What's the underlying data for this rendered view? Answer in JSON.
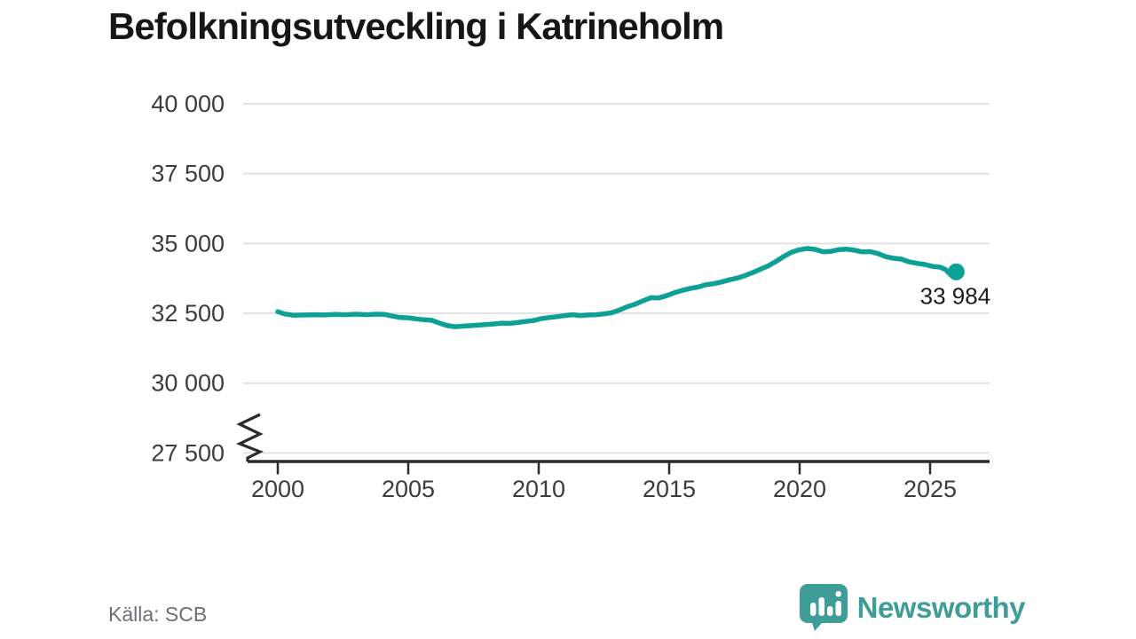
{
  "title": "Befolkningsutveckling i Katrineholm",
  "source": "Källa: SCB",
  "brand": {
    "name": "Newsworthy"
  },
  "colors": {
    "line": "#0da094",
    "logo": "#3e9e97",
    "grid": "#e2e2e2",
    "axis": "#2b2b2b",
    "text": "#3c3c3c",
    "title": "#161616",
    "muted": "#6c6f76",
    "background": "#ffffff"
  },
  "chart_data": {
    "type": "line",
    "title": "Befolkningsutveckling i Katrineholm",
    "xlabel": "",
    "ylabel": "",
    "grid": true,
    "legend": false,
    "axis_break": true,
    "ylim": [
      27500,
      40000
    ],
    "xlim": [
      1998.8,
      2027.3
    ],
    "y_ticks": [
      40000,
      37500,
      35000,
      32500,
      30000,
      27500
    ],
    "y_tick_labels": [
      "40 000",
      "37 500",
      "35 000",
      "32 500",
      "30 000",
      "27 500"
    ],
    "x_ticks": [
      2000,
      2005,
      2010,
      2015,
      2020,
      2025
    ],
    "x_tick_labels": [
      "2000",
      "2005",
      "2010",
      "2015",
      "2020",
      "2025"
    ],
    "end_point_label": "33 984",
    "series": [
      {
        "name": "Befolkning",
        "points": [
          [
            2000.0,
            32560
          ],
          [
            2000.25,
            32480
          ],
          [
            2000.6,
            32430
          ],
          [
            2001.0,
            32440
          ],
          [
            2001.4,
            32450
          ],
          [
            2001.8,
            32440
          ],
          [
            2002.2,
            32460
          ],
          [
            2002.6,
            32450
          ],
          [
            2003.0,
            32470
          ],
          [
            2003.4,
            32450
          ],
          [
            2003.8,
            32470
          ],
          [
            2004.1,
            32460
          ],
          [
            2004.4,
            32400
          ],
          [
            2004.7,
            32350
          ],
          [
            2005.0,
            32340
          ],
          [
            2005.3,
            32300
          ],
          [
            2005.6,
            32270
          ],
          [
            2005.9,
            32250
          ],
          [
            2006.2,
            32150
          ],
          [
            2006.5,
            32060
          ],
          [
            2006.8,
            32020
          ],
          [
            2007.1,
            32040
          ],
          [
            2007.4,
            32060
          ],
          [
            2007.7,
            32080
          ],
          [
            2008.0,
            32100
          ],
          [
            2008.3,
            32120
          ],
          [
            2008.6,
            32150
          ],
          [
            2008.9,
            32140
          ],
          [
            2009.2,
            32170
          ],
          [
            2009.5,
            32210
          ],
          [
            2009.8,
            32240
          ],
          [
            2010.1,
            32310
          ],
          [
            2010.4,
            32350
          ],
          [
            2010.7,
            32380
          ],
          [
            2011.0,
            32420
          ],
          [
            2011.3,
            32450
          ],
          [
            2011.6,
            32420
          ],
          [
            2011.9,
            32440
          ],
          [
            2012.2,
            32450
          ],
          [
            2012.5,
            32480
          ],
          [
            2012.8,
            32520
          ],
          [
            2013.1,
            32620
          ],
          [
            2013.4,
            32740
          ],
          [
            2013.7,
            32830
          ],
          [
            2014.0,
            32950
          ],
          [
            2014.3,
            33060
          ],
          [
            2014.6,
            33050
          ],
          [
            2014.9,
            33130
          ],
          [
            2015.2,
            33240
          ],
          [
            2015.5,
            33320
          ],
          [
            2015.8,
            33390
          ],
          [
            2016.1,
            33440
          ],
          [
            2016.4,
            33520
          ],
          [
            2016.7,
            33560
          ],
          [
            2017.0,
            33620
          ],
          [
            2017.3,
            33700
          ],
          [
            2017.6,
            33760
          ],
          [
            2017.9,
            33850
          ],
          [
            2018.2,
            33960
          ],
          [
            2018.5,
            34080
          ],
          [
            2018.8,
            34200
          ],
          [
            2019.1,
            34360
          ],
          [
            2019.4,
            34540
          ],
          [
            2019.7,
            34690
          ],
          [
            2020.0,
            34780
          ],
          [
            2020.3,
            34820
          ],
          [
            2020.6,
            34790
          ],
          [
            2020.9,
            34700
          ],
          [
            2021.2,
            34720
          ],
          [
            2021.5,
            34780
          ],
          [
            2021.8,
            34800
          ],
          [
            2022.1,
            34760
          ],
          [
            2022.4,
            34700
          ],
          [
            2022.7,
            34710
          ],
          [
            2023.0,
            34640
          ],
          [
            2023.3,
            34530
          ],
          [
            2023.6,
            34470
          ],
          [
            2023.9,
            34440
          ],
          [
            2024.2,
            34340
          ],
          [
            2024.5,
            34290
          ],
          [
            2024.8,
            34250
          ],
          [
            2025.1,
            34180
          ],
          [
            2025.4,
            34150
          ],
          [
            2025.6,
            34060
          ],
          [
            2025.8,
            33870
          ],
          [
            2026.0,
            33984
          ]
        ]
      }
    ]
  }
}
